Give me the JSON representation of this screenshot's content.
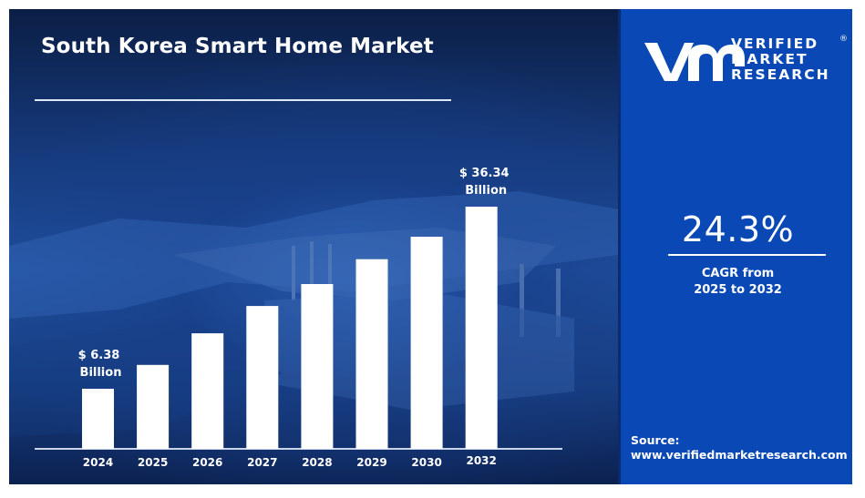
{
  "title": "South Korea Smart Home Market",
  "brand": {
    "name_lines": [
      "VERIFIED",
      "MARKET",
      "RESEARCH"
    ],
    "registered_mark": "®",
    "logo_icon": "vmr-logo-icon",
    "panel_color": "#0a48b5",
    "bar_color": "#ffffff"
  },
  "cagr": {
    "value": "24.3%",
    "label_line1": "CAGR from",
    "label_line2": "2025 to 2032"
  },
  "source": {
    "label": "Source:",
    "url": "www.verifiedmarketresearch.com"
  },
  "chart_data": {
    "type": "bar",
    "title": "South Korea Smart Home Market",
    "xlabel": "",
    "ylabel": "",
    "unit": "USD Billion",
    "grid": false,
    "categories": [
      "2024",
      "2025",
      "2026",
      "2027",
      "2028",
      "2029",
      "2030",
      "2032"
    ],
    "values": [
      6.38,
      10.3,
      15.5,
      20.0,
      23.6,
      27.7,
      31.4,
      36.34
    ],
    "annotations": [
      {
        "category": "2024",
        "line1": "$ 6.38",
        "line2": "Billion"
      },
      {
        "category": "2032",
        "line1": "$ 36.34",
        "line2": "Billion"
      }
    ]
  }
}
